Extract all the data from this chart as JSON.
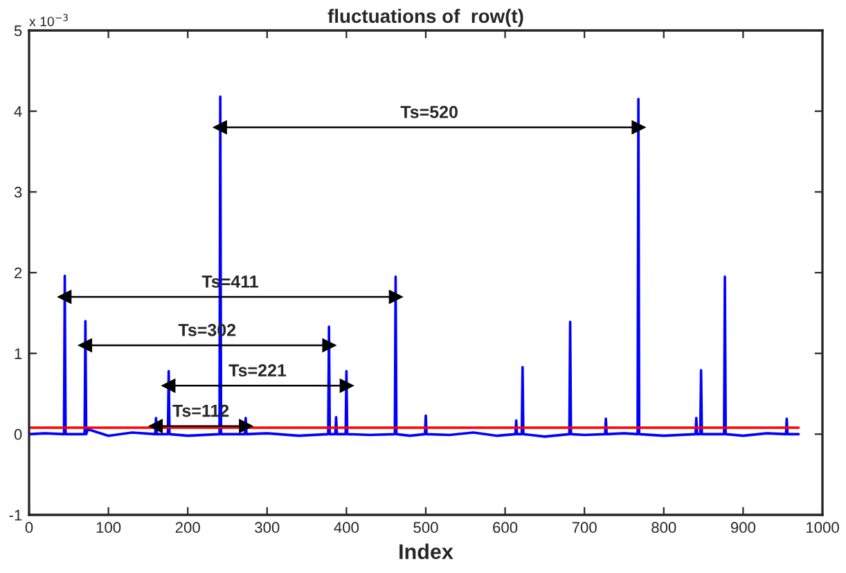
{
  "chart_data": {
    "type": "line",
    "title": "fluctuations of  row(t)",
    "xlabel": "Index",
    "xlim": [
      0,
      1000
    ],
    "xticks": [
      0,
      100,
      200,
      300,
      400,
      500,
      600,
      700,
      800,
      900,
      1000
    ],
    "ylim": [
      -1,
      5
    ],
    "yticks": [
      -1,
      0,
      1,
      2,
      3,
      4,
      5
    ],
    "grid": false,
    "legend": false,
    "marker": "none",
    "line_style": "solid",
    "series": [
      {
        "color": "#0000ff",
        "x": [
          0,
          20,
          44,
          45,
          46,
          70,
          71,
          72,
          74,
          100,
          130,
          159,
          160,
          161,
          175,
          176,
          177,
          200,
          240,
          241,
          242,
          272,
          273,
          274,
          300,
          340,
          377,
          378,
          379,
          386,
          387,
          388,
          399,
          400,
          401,
          430,
          461,
          462,
          463,
          480,
          499,
          500,
          501,
          530,
          560,
          590,
          613,
          614,
          615,
          621,
          622,
          623,
          650,
          681,
          682,
          683,
          700,
          726,
          727,
          728,
          750,
          767,
          768,
          769,
          800,
          840,
          841,
          842,
          846,
          847,
          848,
          876,
          877,
          878,
          900,
          930,
          954,
          955,
          956,
          970
        ],
        "values": [
          0.0,
          0.01,
          0,
          1.96,
          0,
          0,
          1.4,
          0,
          0.06,
          -0.02,
          0.02,
          0,
          0.2,
          0,
          0,
          0.78,
          0,
          -0.02,
          0,
          4.18,
          0,
          0,
          0.2,
          0,
          0.01,
          -0.02,
          0,
          1.33,
          0,
          0,
          0.21,
          0,
          0,
          0.78,
          0,
          -0.01,
          0,
          1.95,
          0,
          -0.02,
          0,
          0.23,
          0,
          -0.01,
          0.02,
          -0.02,
          0,
          0.17,
          0,
          0,
          0.83,
          0,
          -0.03,
          0,
          1.39,
          0,
          -0.01,
          0,
          0.19,
          0,
          0.01,
          0,
          4.15,
          0,
          -0.02,
          0,
          0.2,
          0,
          0,
          0.79,
          0,
          0,
          1.95,
          0,
          -0.02,
          0.01,
          0,
          0.19,
          0,
          0
        ]
      },
      {
        "color": "#ff0000",
        "x": [
          0,
          970
        ],
        "values": [
          0.08,
          0.08
        ]
      },
      {
        "type": "line",
        "color": "#000000",
        "marker": "triangle",
        "x": [
          241,
          768
        ],
        "values": [
          3.8,
          3.8
        ]
      },
      {
        "type": "line",
        "color": "#000000",
        "marker": "triangle",
        "x": [
          45,
          462
        ],
        "values": [
          1.7,
          1.7
        ]
      },
      {
        "type": "line",
        "color": "#000000",
        "marker": "triangle",
        "x": [
          71,
          378
        ],
        "values": [
          1.1,
          1.1
        ]
      },
      {
        "type": "line",
        "color": "#000000",
        "marker": "triangle",
        "x": [
          176,
          400
        ],
        "values": [
          0.6,
          0.6
        ]
      },
      {
        "type": "line",
        "color": "#000000",
        "marker": "triangle",
        "x": [
          160,
          273
        ],
        "values": [
          0.1,
          0.1
        ]
      }
    ],
    "annotations": [
      "x 10$^{−3}$",
      "Ts=520",
      "Ts=411",
      "Ts=302",
      "Ts=221",
      "Ts=112"
    ]
  }
}
